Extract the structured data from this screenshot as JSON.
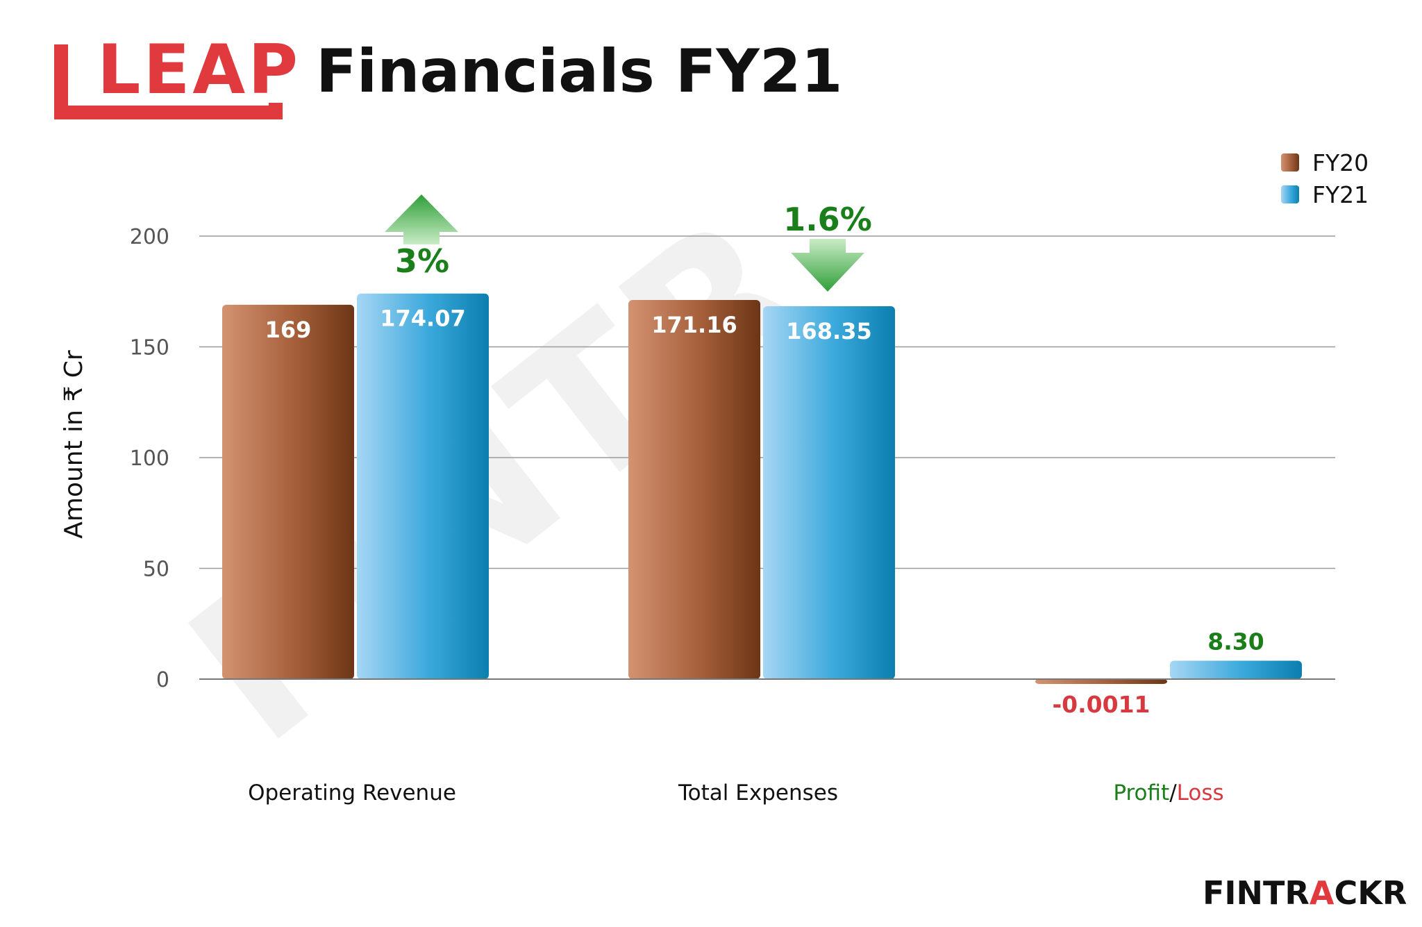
{
  "header": {
    "logo_text": "LEAP",
    "title": "Financials FY21"
  },
  "colors": {
    "fy20": "#9a5530",
    "fy21": "#2a9fd0",
    "positive": "#1a7f1a",
    "negative": "#d6393f",
    "brand_red": "#e03a3e",
    "up_arrow": "#55c15a"
  },
  "chart_data": {
    "type": "bar",
    "title": "Financials FY21",
    "ylabel": "Amount in ₹ Cr",
    "xlabel": "",
    "ylim": [
      0,
      200
    ],
    "yticks": [
      0,
      50,
      100,
      150,
      200
    ],
    "grid": true,
    "legend_position": "top-right",
    "categories": [
      "Operating Revenue",
      "Total Expenses",
      "Profit/Loss"
    ],
    "series": [
      {
        "name": "FY20",
        "values": [
          169,
          171.16,
          -0.0011
        ],
        "labels": [
          "169",
          "171.16",
          "-0.0011"
        ]
      },
      {
        "name": "FY21",
        "values": [
          174.07,
          168.35,
          8.3
        ],
        "labels": [
          "174.07",
          "168.35",
          "8.30"
        ]
      }
    ],
    "category_labels": {
      "profit": "Profit",
      "separator": "/",
      "loss": "Loss"
    },
    "annotations": [
      {
        "category": "Operating Revenue",
        "text": "3%",
        "direction": "up"
      },
      {
        "category": "Total Expenses",
        "text": "1.6%",
        "direction": "down"
      }
    ]
  },
  "footer": {
    "brand_part1": "FINTR",
    "brand_part2": "A",
    "brand_part3": "CKR"
  }
}
